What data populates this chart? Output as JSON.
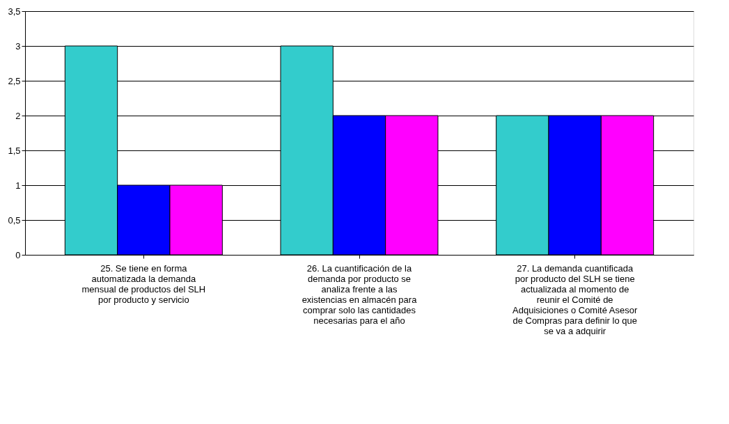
{
  "chart_data": {
    "type": "bar",
    "categories": [
      "25.   Se tiene en forma automatizada la demanda mensual de productos del SLH por producto y servicio",
      "26.   La cuantificación de la demanda por producto se analiza frente a las existencias en almacén para comprar solo las cantidades necesarias para el año",
      "27.   La demanda cuantificada por producto del SLH se tiene actualizada al momento de reunir el Comité de Adquisiciones o Comité Asesor de Compras para definir lo que se va a adquirir"
    ],
    "series": [
      {
        "color": "#33cccc",
        "values": [
          3,
          3,
          2
        ]
      },
      {
        "color": "#0000ff",
        "values": [
          1,
          2,
          2
        ]
      },
      {
        "color": "#ff00ff",
        "values": [
          1,
          2,
          2
        ]
      }
    ],
    "ylim": [
      0,
      3.5
    ],
    "yticks": [
      0,
      {
        "value": 0.5,
        "label": "0,5"
      },
      1,
      {
        "value": 1.5,
        "label": "1,5"
      },
      2,
      {
        "value": 2.5,
        "label": "2,5"
      },
      3,
      {
        "value": 3.5,
        "label": "3,5"
      }
    ],
    "grid": "y",
    "legend": false
  }
}
